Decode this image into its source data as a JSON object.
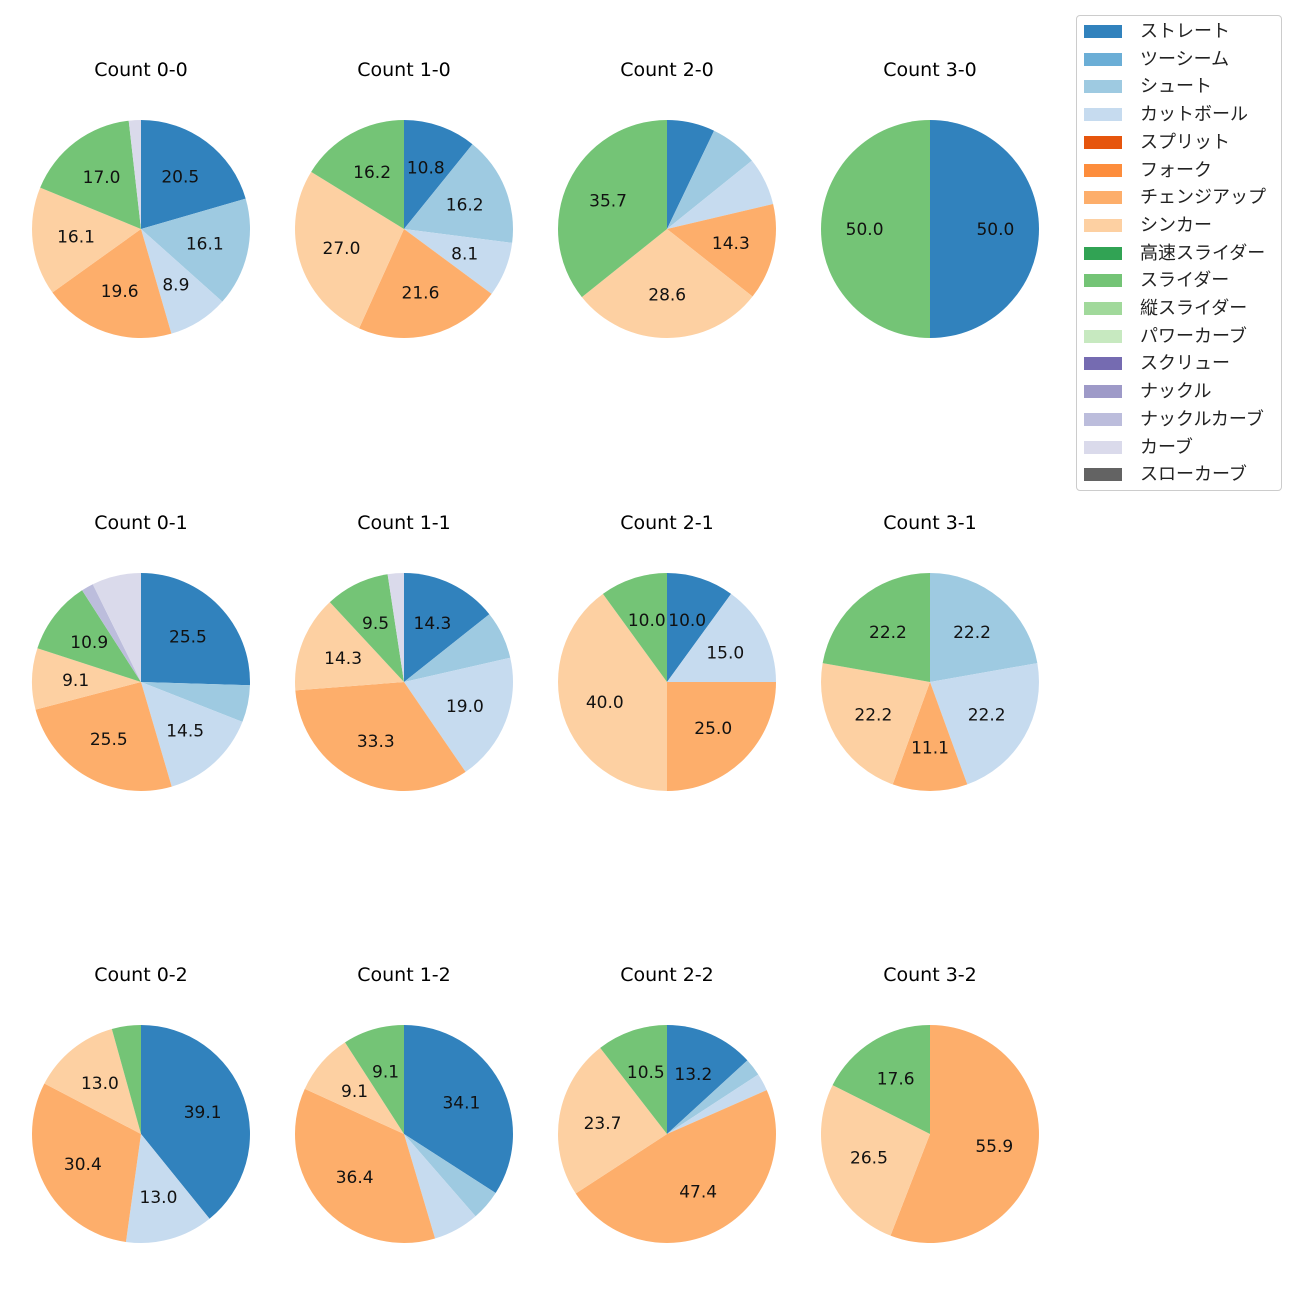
{
  "chart_data": {
    "type": "pie",
    "legend": {
      "placement": "top-right",
      "entries": [
        {
          "name": "ストレート",
          "color": "#3182bd"
        },
        {
          "name": "ツーシーム",
          "color": "#6baed6"
        },
        {
          "name": "シュート",
          "color": "#9ecae1"
        },
        {
          "name": "カットボール",
          "color": "#c6dbef"
        },
        {
          "name": "スプリット",
          "color": "#e6550d"
        },
        {
          "name": "フォーク",
          "color": "#fd8d3c"
        },
        {
          "name": "チェンジアップ",
          "color": "#fdae6b"
        },
        {
          "name": "シンカー",
          "color": "#fdd0a2"
        },
        {
          "name": "高速スライダー",
          "color": "#31a354"
        },
        {
          "name": "スライダー",
          "color": "#74c476"
        },
        {
          "name": "縦スライダー",
          "color": "#a1d99b"
        },
        {
          "name": "パワーカーブ",
          "color": "#c7e9c0"
        },
        {
          "name": "スクリュー",
          "color": "#756bb1"
        },
        {
          "name": "ナックル",
          "color": "#9e9ac8"
        },
        {
          "name": "ナックルカーブ",
          "color": "#bcbddc"
        },
        {
          "name": "カーブ",
          "color": "#dadaeb"
        },
        {
          "name": "スローカーブ",
          "color": "#636363"
        }
      ]
    },
    "pies": [
      {
        "title": "Count 0-0",
        "slices": [
          {
            "pitch": "ストレート",
            "value": 20.5,
            "label": "20.5"
          },
          {
            "pitch": "シュート",
            "value": 16.1,
            "label": "16.1"
          },
          {
            "pitch": "カットボール",
            "value": 8.9,
            "label": "8.9"
          },
          {
            "pitch": "チェンジアップ",
            "value": 19.6,
            "label": "19.6"
          },
          {
            "pitch": "シンカー",
            "value": 16.1,
            "label": "16.1"
          },
          {
            "pitch": "スライダー",
            "value": 17.0,
            "label": "17.0"
          },
          {
            "pitch": "カーブ",
            "value": 1.8,
            "label": ""
          }
        ]
      },
      {
        "title": "Count 1-0",
        "slices": [
          {
            "pitch": "ストレート",
            "value": 10.8,
            "label": "10.8"
          },
          {
            "pitch": "シュート",
            "value": 16.2,
            "label": "16.2"
          },
          {
            "pitch": "カットボール",
            "value": 8.1,
            "label": "8.1"
          },
          {
            "pitch": "チェンジアップ",
            "value": 21.6,
            "label": "21.6"
          },
          {
            "pitch": "シンカー",
            "value": 27.0,
            "label": "27.0"
          },
          {
            "pitch": "スライダー",
            "value": 16.2,
            "label": "16.2"
          }
        ]
      },
      {
        "title": "Count 2-0",
        "slices": [
          {
            "pitch": "ストレート",
            "value": 7.1,
            "label": ""
          },
          {
            "pitch": "シュート",
            "value": 7.1,
            "label": ""
          },
          {
            "pitch": "カットボール",
            "value": 7.1,
            "label": ""
          },
          {
            "pitch": "チェンジアップ",
            "value": 14.3,
            "label": "14.3"
          },
          {
            "pitch": "シンカー",
            "value": 28.6,
            "label": "28.6"
          },
          {
            "pitch": "スライダー",
            "value": 35.7,
            "label": "35.7"
          }
        ]
      },
      {
        "title": "Count 3-0",
        "slices": [
          {
            "pitch": "ストレート",
            "value": 50.0,
            "label": "50.0"
          },
          {
            "pitch": "スライダー",
            "value": 50.0,
            "label": "50.0"
          }
        ]
      },
      {
        "title": "Count 0-1",
        "slices": [
          {
            "pitch": "ストレート",
            "value": 25.5,
            "label": "25.5"
          },
          {
            "pitch": "シュート",
            "value": 5.5,
            "label": ""
          },
          {
            "pitch": "カットボール",
            "value": 14.5,
            "label": "14.5"
          },
          {
            "pitch": "チェンジアップ",
            "value": 25.5,
            "label": "25.5"
          },
          {
            "pitch": "シンカー",
            "value": 9.1,
            "label": "9.1"
          },
          {
            "pitch": "スライダー",
            "value": 10.9,
            "label": "10.9"
          },
          {
            "pitch": "ナックルカーブ",
            "value": 1.8,
            "label": ""
          },
          {
            "pitch": "カーブ",
            "value": 7.3,
            "label": ""
          }
        ]
      },
      {
        "title": "Count 1-1",
        "slices": [
          {
            "pitch": "ストレート",
            "value": 14.3,
            "label": "14.3"
          },
          {
            "pitch": "シュート",
            "value": 7.1,
            "label": ""
          },
          {
            "pitch": "カットボール",
            "value": 19.0,
            "label": "19.0"
          },
          {
            "pitch": "チェンジアップ",
            "value": 33.3,
            "label": "33.3"
          },
          {
            "pitch": "シンカー",
            "value": 14.3,
            "label": "14.3"
          },
          {
            "pitch": "スライダー",
            "value": 9.5,
            "label": "9.5"
          },
          {
            "pitch": "カーブ",
            "value": 2.4,
            "label": ""
          }
        ]
      },
      {
        "title": "Count 2-1",
        "slices": [
          {
            "pitch": "ストレート",
            "value": 10.0,
            "label": "10.0"
          },
          {
            "pitch": "カットボール",
            "value": 15.0,
            "label": "15.0"
          },
          {
            "pitch": "チェンジアップ",
            "value": 25.0,
            "label": "25.0"
          },
          {
            "pitch": "シンカー",
            "value": 40.0,
            "label": "40.0"
          },
          {
            "pitch": "スライダー",
            "value": 10.0,
            "label": "10.0"
          }
        ]
      },
      {
        "title": "Count 3-1",
        "slices": [
          {
            "pitch": "シュート",
            "value": 22.2,
            "label": "22.2"
          },
          {
            "pitch": "カットボール",
            "value": 22.2,
            "label": "22.2"
          },
          {
            "pitch": "チェンジアップ",
            "value": 11.1,
            "label": "11.1"
          },
          {
            "pitch": "シンカー",
            "value": 22.2,
            "label": "22.2"
          },
          {
            "pitch": "スライダー",
            "value": 22.2,
            "label": "22.2"
          }
        ]
      },
      {
        "title": "Count 0-2",
        "slices": [
          {
            "pitch": "ストレート",
            "value": 39.1,
            "label": "39.1"
          },
          {
            "pitch": "カットボール",
            "value": 13.0,
            "label": "13.0"
          },
          {
            "pitch": "チェンジアップ",
            "value": 30.4,
            "label": "30.4"
          },
          {
            "pitch": "シンカー",
            "value": 13.0,
            "label": "13.0"
          },
          {
            "pitch": "スライダー",
            "value": 4.3,
            "label": ""
          }
        ]
      },
      {
        "title": "Count 1-2",
        "slices": [
          {
            "pitch": "ストレート",
            "value": 34.1,
            "label": "34.1"
          },
          {
            "pitch": "シュート",
            "value": 4.5,
            "label": ""
          },
          {
            "pitch": "カットボール",
            "value": 6.8,
            "label": ""
          },
          {
            "pitch": "チェンジアップ",
            "value": 36.4,
            "label": "36.4"
          },
          {
            "pitch": "シンカー",
            "value": 9.1,
            "label": "9.1"
          },
          {
            "pitch": "スライダー",
            "value": 9.1,
            "label": "9.1"
          }
        ]
      },
      {
        "title": "Count 2-2",
        "slices": [
          {
            "pitch": "ストレート",
            "value": 13.2,
            "label": "13.2"
          },
          {
            "pitch": "シュート",
            "value": 2.6,
            "label": ""
          },
          {
            "pitch": "カットボール",
            "value": 2.6,
            "label": ""
          },
          {
            "pitch": "チェンジアップ",
            "value": 47.4,
            "label": "47.4"
          },
          {
            "pitch": "シンカー",
            "value": 23.7,
            "label": "23.7"
          },
          {
            "pitch": "スライダー",
            "value": 10.5,
            "label": "10.5"
          }
        ]
      },
      {
        "title": "Count 3-2",
        "slices": [
          {
            "pitch": "チェンジアップ",
            "value": 55.9,
            "label": "55.9"
          },
          {
            "pitch": "シンカー",
            "value": 26.5,
            "label": "26.5"
          },
          {
            "pitch": "スライダー",
            "value": 17.6,
            "label": "17.6"
          }
        ]
      }
    ]
  }
}
